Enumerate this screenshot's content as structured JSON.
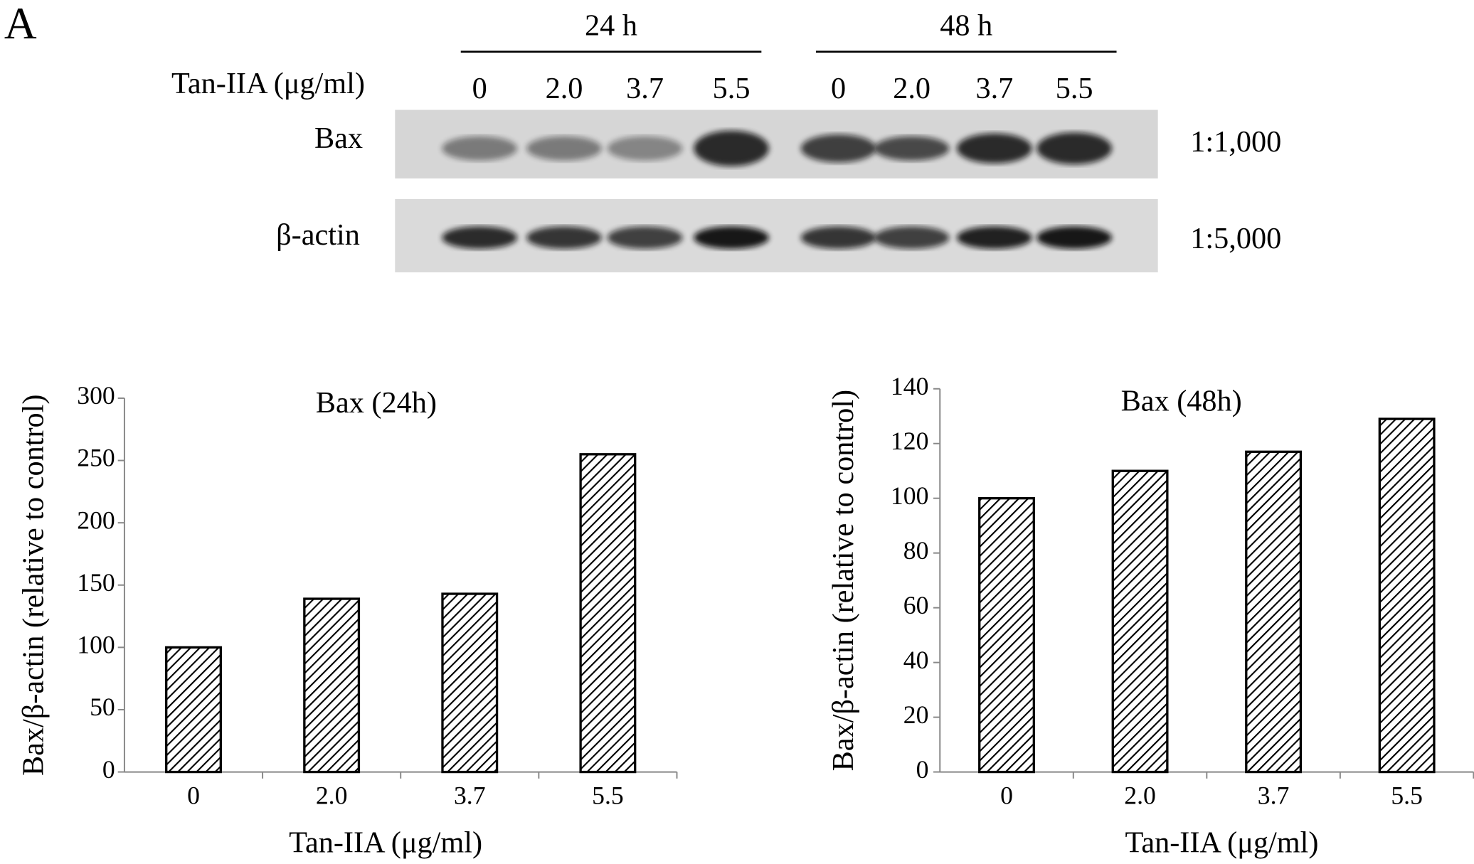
{
  "blot": {
    "panel_label": "A",
    "treatment_label": "Tan-IIA (μg/ml)",
    "time_groups": [
      {
        "label": "24 h",
        "lanes": [
          "0",
          "2.0",
          "3.7",
          "5.5"
        ]
      },
      {
        "label": "48 h",
        "lanes": [
          "0",
          "2.0",
          "3.7",
          "5.5"
        ]
      }
    ],
    "rows": [
      {
        "name": "Bax",
        "dilution": "1:1,000"
      },
      {
        "name": "β-actin",
        "dilution": "1:5,000"
      }
    ]
  },
  "chart_data": [
    {
      "type": "bar",
      "title": "Bax (24h)",
      "x_label": "Tan-IIA (μg/ml)",
      "y_label": "Bax/β-actin (relative to control)",
      "categories": [
        "0",
        "2.0",
        "3.7",
        "5.5"
      ],
      "values": [
        100,
        139,
        143,
        255
      ],
      "ylim": [
        0,
        300
      ],
      "yticks": [
        0,
        50,
        100,
        150,
        200,
        250,
        300
      ],
      "color": "hatched"
    },
    {
      "type": "bar",
      "title": "Bax (48h)",
      "x_label": "Tan-IIA (μg/ml)",
      "y_label": "Bax/β-actin (relative to control)",
      "categories": [
        "0",
        "2.0",
        "3.7",
        "5.5"
      ],
      "values": [
        100,
        110,
        117,
        129
      ],
      "ylim": [
        0,
        140
      ],
      "yticks": [
        0,
        20,
        40,
        60,
        80,
        100,
        120,
        140
      ],
      "color": "hatched"
    }
  ]
}
